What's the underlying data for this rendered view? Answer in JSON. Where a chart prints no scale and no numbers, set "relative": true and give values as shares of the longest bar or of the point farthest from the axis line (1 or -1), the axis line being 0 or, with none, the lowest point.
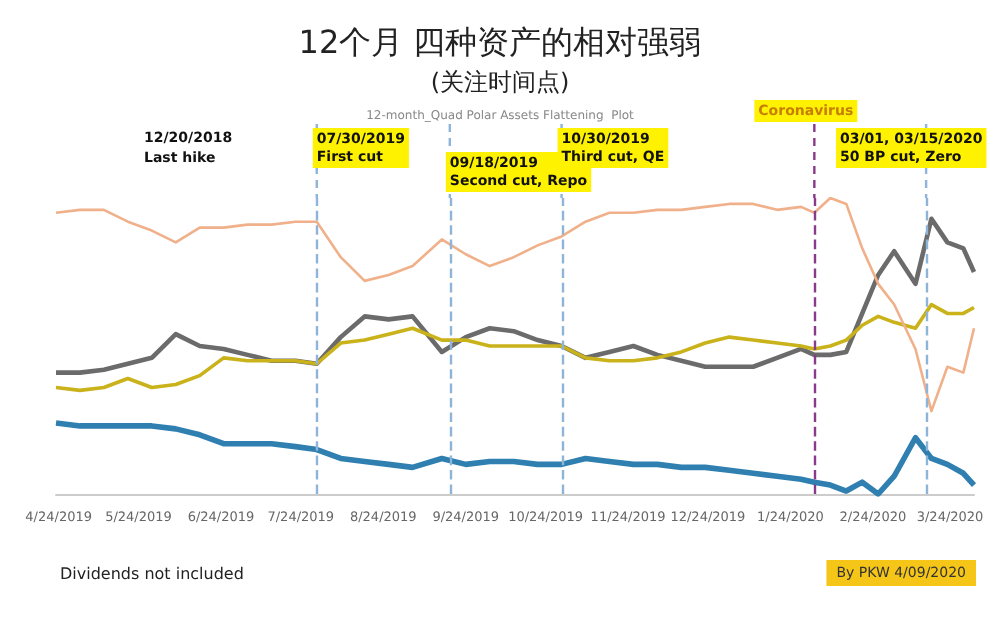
{
  "chart_data": {
    "type": "line",
    "title": "12个月 四种资产的相对强弱",
    "subtitle": "(关注时间点)",
    "relative": true,
    "tick_labels": "x",
    "marker": "none",
    "line_style": "solid",
    "annotations": [
      "12-month_Quad Polar Assets Flattening  Plot",
      "12/20/2018\nLast hike",
      "Dividends not included",
      "By PKW 4/09/2020"
    ],
    "x": [
      "2019-04-23",
      "2019-05-02",
      "2019-05-11",
      "2019-05-20",
      "2019-05-29",
      "2019-06-07",
      "2019-06-16",
      "2019-06-25",
      "2019-07-04",
      "2019-07-13",
      "2019-07-22",
      "2019-07-30",
      "2019-08-08",
      "2019-08-17",
      "2019-08-26",
      "2019-09-04",
      "2019-09-15",
      "2019-09-24",
      "2019-10-03",
      "2019-10-12",
      "2019-10-21",
      "2019-10-30",
      "2019-11-08",
      "2019-11-17",
      "2019-11-26",
      "2019-12-05",
      "2019-12-14",
      "2019-12-23",
      "2020-01-01",
      "2020-01-10",
      "2020-01-19",
      "2020-01-28",
      "2020-02-02",
      "2020-02-08",
      "2020-02-14",
      "2020-02-20",
      "2020-02-26",
      "2020-03-03",
      "2020-03-11",
      "2020-03-17",
      "2020-03-23",
      "2020-03-29",
      "2020-04-02"
    ],
    "xlim": [
      "2019-04-23",
      "2020-04-02"
    ],
    "xticks": [
      {
        "value": "2019-04-24",
        "label": "4/24/2019"
      },
      {
        "value": "2019-05-24",
        "label": "5/24/2019"
      },
      {
        "value": "2019-06-24",
        "label": "6/24/2019"
      },
      {
        "value": "2019-07-24",
        "label": "7/24/2019"
      },
      {
        "value": "2019-08-24",
        "label": "8/24/2019"
      },
      {
        "value": "2019-09-24",
        "label": "9/24/2019"
      },
      {
        "value": "2019-10-24",
        "label": "10/24/2019"
      },
      {
        "value": "2019-11-24",
        "label": "11/24/2019"
      },
      {
        "value": "2019-12-24",
        "label": "12/24/2019"
      },
      {
        "value": "2020-01-24",
        "label": "1/24/2020"
      },
      {
        "value": "2020-02-24",
        "label": "2/24/2020"
      },
      {
        "value": "2020-03-24",
        "label": "3/24/2020"
      }
    ],
    "series": [
      {
        "color": "#2f7fb0",
        "values": [
          0.24,
          0.23,
          0.23,
          0.23,
          0.23,
          0.22,
          0.2,
          0.17,
          0.17,
          0.17,
          0.16,
          0.15,
          0.12,
          0.11,
          0.1,
          0.09,
          0.12,
          0.1,
          0.11,
          0.11,
          0.1,
          0.1,
          0.12,
          0.11,
          0.1,
          0.1,
          0.09,
          0.09,
          0.08,
          0.07,
          0.06,
          0.05,
          0.04,
          0.03,
          0.01,
          0.04,
          0,
          0.06,
          0.19,
          0.12,
          0.1,
          0.07,
          0.03
        ]
      },
      {
        "color": "#6b6b6b",
        "values": [
          0.41,
          0.41,
          0.42,
          0.44,
          0.46,
          0.54,
          0.5,
          0.49,
          0.47,
          0.45,
          0.45,
          0.44,
          0.53,
          0.6,
          0.59,
          0.6,
          0.48,
          0.53,
          0.56,
          0.55,
          0.52,
          0.5,
          0.46,
          0.48,
          0.5,
          0.47,
          0.45,
          0.43,
          0.43,
          0.43,
          0.46,
          0.49,
          0.47,
          0.47,
          0.48,
          0.61,
          0.74,
          0.82,
          0.71,
          0.93,
          0.85,
          0.83,
          0.75
        ]
      },
      {
        "color": "#c9b21a",
        "values": [
          0.36,
          0.35,
          0.36,
          0.39,
          0.36,
          0.37,
          0.4,
          0.46,
          0.45,
          0.45,
          0.45,
          0.44,
          0.51,
          0.52,
          0.54,
          0.56,
          0.52,
          0.52,
          0.5,
          0.5,
          0.5,
          0.5,
          0.46,
          0.45,
          0.45,
          0.46,
          0.48,
          0.51,
          0.53,
          0.52,
          0.51,
          0.5,
          0.49,
          0.5,
          0.52,
          0.57,
          0.6,
          0.58,
          0.56,
          0.64,
          0.61,
          0.61,
          0.63
        ]
      },
      {
        "color": "#f0b08a",
        "values": [
          0.95,
          0.96,
          0.96,
          0.92,
          0.89,
          0.85,
          0.9,
          0.9,
          0.91,
          0.91,
          0.92,
          0.92,
          0.8,
          0.72,
          0.74,
          0.77,
          0.86,
          0.81,
          0.77,
          0.8,
          0.84,
          0.87,
          0.92,
          0.95,
          0.95,
          0.96,
          0.96,
          0.97,
          0.98,
          0.98,
          0.96,
          0.97,
          0.95,
          1,
          0.98,
          0.83,
          0.71,
          0.64,
          0.49,
          0.28,
          0.43,
          0.41,
          0.56
        ]
      }
    ],
    "ref_lines": [
      {
        "axis": "x",
        "value": "2019-07-30",
        "label": "07/30/2019\nFirst cut",
        "color": "#8fb4d9",
        "line_style": "dashed"
      },
      {
        "axis": "x",
        "value": "2019-09-18",
        "label": "09/18/2019\nSecond cut, Repo",
        "color": "#8fb4d9",
        "line_style": "dashed"
      },
      {
        "axis": "x",
        "value": "2019-10-30",
        "label": "10/30/2019\nThird cut, QE",
        "color": "#8fb4d9",
        "line_style": "dashed"
      },
      {
        "axis": "x",
        "value": "2020-02-02",
        "label": "Coronavirus",
        "color": "#8a3a8a",
        "line_style": "dashed"
      },
      {
        "axis": "x",
        "value": "2020-03-15",
        "label": "03/01, 03/15/2020\n50 BP cut, Zero",
        "color": "#8fb4d9",
        "line_style": "dashed"
      }
    ]
  }
}
